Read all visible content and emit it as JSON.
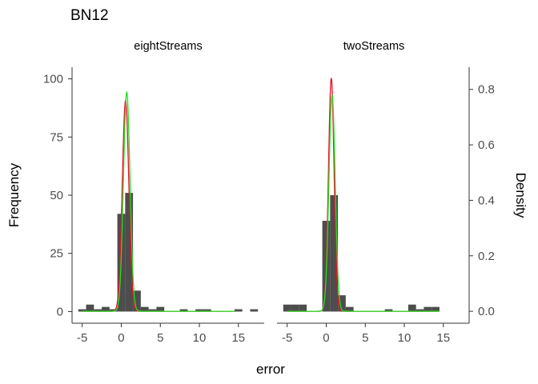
{
  "chart_data": {
    "type": "bar",
    "title": "BN12",
    "xlabel": "error",
    "ylabel": "Frequency",
    "ylabel_right": "Density",
    "xlim": [
      -6.3,
      18.3
    ],
    "ylim": [
      -5,
      105
    ],
    "ylim_right": [
      -0.043,
      0.88
    ],
    "x_ticks": [
      -5,
      0,
      5,
      10,
      15
    ],
    "y_ticks": [
      0,
      25,
      50,
      75,
      100
    ],
    "y_ticks_right": [
      0.0,
      0.2,
      0.4,
      0.6,
      0.8
    ],
    "x_tick_labels": [
      "-5",
      "0",
      "5",
      "10",
      "15"
    ],
    "y_tick_labels": [
      "0",
      "25",
      "50",
      "75",
      "100"
    ],
    "y_tick_labels_right": [
      "0.0",
      "0.2",
      "0.4",
      "0.6",
      "0.8"
    ],
    "bin_width": 1,
    "grid": false,
    "colors": {
      "bars": "#4d4d4d",
      "density_red": "#e8102a",
      "density_green": "#22e01e",
      "axis": "#333333"
    },
    "panels": [
      {
        "name": "eightStreams",
        "bins": [
          {
            "x": -5,
            "count": 1
          },
          {
            "x": -4,
            "count": 3
          },
          {
            "x": -3,
            "count": 1
          },
          {
            "x": -2,
            "count": 2
          },
          {
            "x": -1,
            "count": 1
          },
          {
            "x": 0,
            "count": 42
          },
          {
            "x": 1,
            "count": 51
          },
          {
            "x": 2,
            "count": 9
          },
          {
            "x": 3,
            "count": 2
          },
          {
            "x": 4,
            "count": 1
          },
          {
            "x": 5,
            "count": 2
          },
          {
            "x": 8,
            "count": 1
          },
          {
            "x": 10,
            "count": 1
          },
          {
            "x": 11,
            "count": 1
          },
          {
            "x": 15,
            "count": 1
          },
          {
            "x": 17,
            "count": 1
          }
        ],
        "density_red": {
          "mean": 0.55,
          "sd": 0.42,
          "peak": 0.76
        },
        "density_green": {
          "mean": 0.7,
          "sd": 0.42,
          "peak": 0.79
        }
      },
      {
        "name": "twoStreams",
        "bins": [
          {
            "x": -5,
            "count": 3
          },
          {
            "x": -4,
            "count": 3
          },
          {
            "x": -3,
            "count": 3
          },
          {
            "x": 0,
            "count": 39
          },
          {
            "x": 1,
            "count": 50
          },
          {
            "x": 2,
            "count": 7
          },
          {
            "x": 3,
            "count": 2
          },
          {
            "x": 8,
            "count": 1
          },
          {
            "x": 11,
            "count": 3
          },
          {
            "x": 12,
            "count": 1
          },
          {
            "x": 13,
            "count": 2
          },
          {
            "x": 14,
            "count": 2
          }
        ],
        "density_red": {
          "mean": 0.65,
          "sd": 0.36,
          "peak": 0.84
        },
        "density_green": {
          "mean": 0.75,
          "sd": 0.4,
          "peak": 0.78
        }
      }
    ]
  }
}
